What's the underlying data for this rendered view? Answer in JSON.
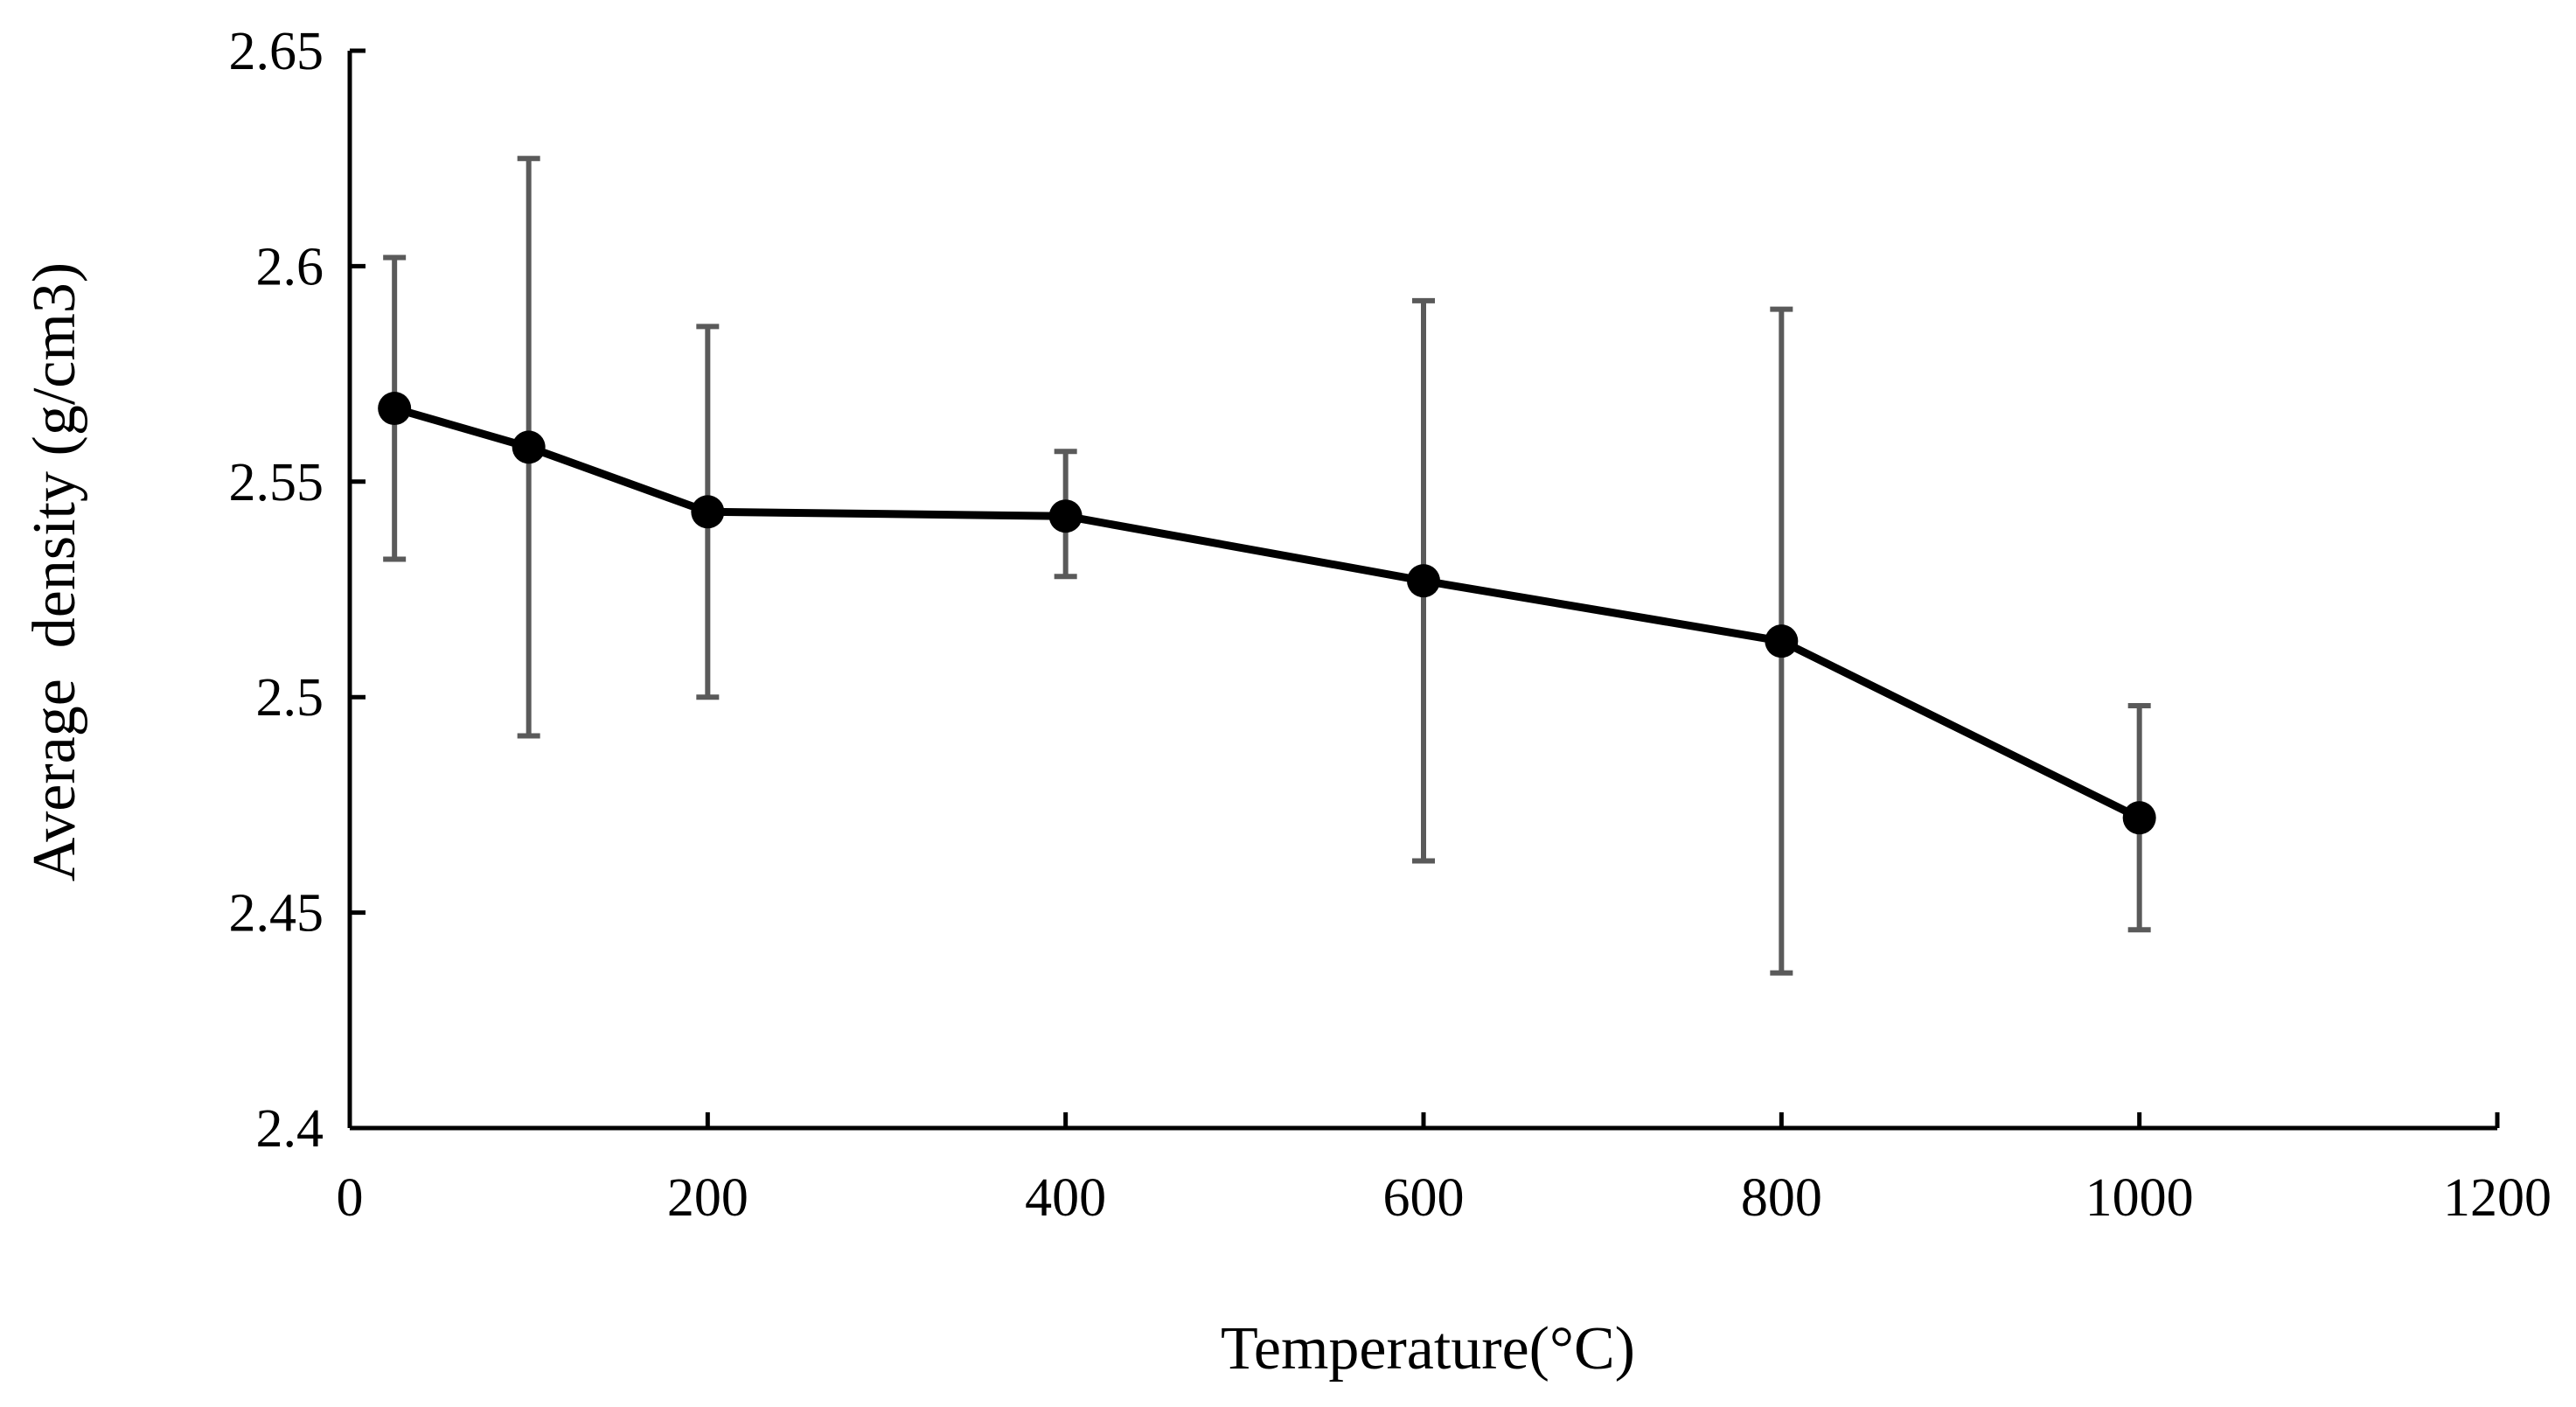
{
  "chart_data": {
    "type": "line",
    "title": "",
    "xlabel": "Temperature(°C)",
    "ylabel": "Average  density (g/cm3)",
    "xlim": [
      0,
      1200
    ],
    "ylim": [
      2.4,
      2.65
    ],
    "x_ticks": [
      0,
      200,
      400,
      600,
      800,
      1000,
      1200
    ],
    "x_tick_labels": [
      "0",
      "200",
      "400",
      "600",
      "800",
      "1000",
      "1200"
    ],
    "y_ticks": [
      2.4,
      2.45,
      2.5,
      2.55,
      2.6,
      2.65
    ],
    "y_tick_labels": [
      "2.4",
      "2.45",
      "2.5",
      "2.55",
      "2.6",
      "2.65"
    ],
    "grid": false,
    "series": [
      {
        "name": "Average density",
        "color": "#000000",
        "error_bar_color": "#5a5a5a",
        "points": [
          {
            "x": 25,
            "y": 2.567,
            "err_low": 2.532,
            "err_high": 2.602
          },
          {
            "x": 100,
            "y": 2.558,
            "err_low": 2.491,
            "err_high": 2.625
          },
          {
            "x": 200,
            "y": 2.543,
            "err_low": 2.5,
            "err_high": 2.586
          },
          {
            "x": 400,
            "y": 2.542,
            "err_low": 2.528,
            "err_high": 2.557
          },
          {
            "x": 600,
            "y": 2.527,
            "err_low": 2.462,
            "err_high": 2.592
          },
          {
            "x": 800,
            "y": 2.513,
            "err_low": 2.436,
            "err_high": 2.59
          },
          {
            "x": 1000,
            "y": 2.472,
            "err_low": 2.446,
            "err_high": 2.498
          }
        ]
      }
    ]
  }
}
